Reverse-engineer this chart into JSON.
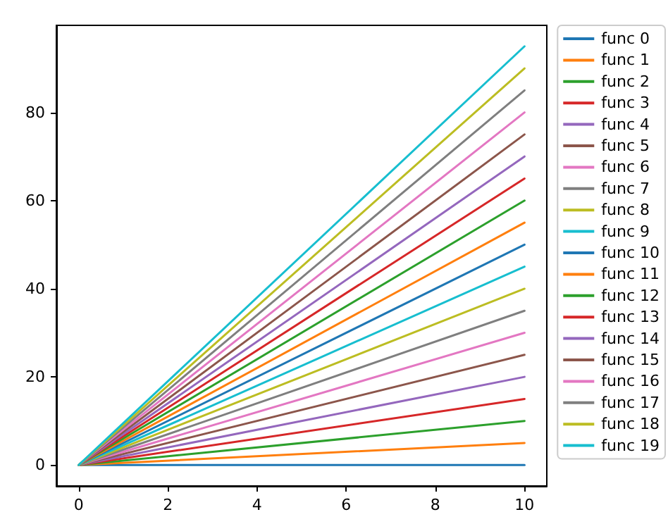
{
  "chart_data": {
    "type": "line",
    "x": [
      0,
      10
    ],
    "xlim": [
      -0.5,
      10.5
    ],
    "ylim": [
      -4.75,
      99.75
    ],
    "xticks": [
      0,
      2,
      4,
      6,
      8,
      10
    ],
    "yticks": [
      0,
      20,
      40,
      60,
      80
    ],
    "grid": false,
    "legend": "right",
    "line_style": "solid",
    "series": [
      {
        "name": "func 0",
        "color": "#1f77b4",
        "values": [
          0,
          0
        ]
      },
      {
        "name": "func 1",
        "color": "#ff7f0e",
        "values": [
          0,
          5
        ]
      },
      {
        "name": "func 2",
        "color": "#2ca02c",
        "values": [
          0,
          10
        ]
      },
      {
        "name": "func 3",
        "color": "#d62728",
        "values": [
          0,
          15
        ]
      },
      {
        "name": "func 4",
        "color": "#9467bd",
        "values": [
          0,
          20
        ]
      },
      {
        "name": "func 5",
        "color": "#8c564b",
        "values": [
          0,
          25
        ]
      },
      {
        "name": "func 6",
        "color": "#e377c2",
        "values": [
          0,
          30
        ]
      },
      {
        "name": "func 7",
        "color": "#7f7f7f",
        "values": [
          0,
          35
        ]
      },
      {
        "name": "func 8",
        "color": "#bcbd22",
        "values": [
          0,
          40
        ]
      },
      {
        "name": "func 9",
        "color": "#17becf",
        "values": [
          0,
          45
        ]
      },
      {
        "name": "func 10",
        "color": "#1f77b4",
        "values": [
          0,
          50
        ]
      },
      {
        "name": "func 11",
        "color": "#ff7f0e",
        "values": [
          0,
          55
        ]
      },
      {
        "name": "func 12",
        "color": "#2ca02c",
        "values": [
          0,
          60
        ]
      },
      {
        "name": "func 13",
        "color": "#d62728",
        "values": [
          0,
          65
        ]
      },
      {
        "name": "func 14",
        "color": "#9467bd",
        "values": [
          0,
          70
        ]
      },
      {
        "name": "func 15",
        "color": "#8c564b",
        "values": [
          0,
          75
        ]
      },
      {
        "name": "func 16",
        "color": "#e377c2",
        "values": [
          0,
          80
        ]
      },
      {
        "name": "func 17",
        "color": "#7f7f7f",
        "values": [
          0,
          85
        ]
      },
      {
        "name": "func 18",
        "color": "#bcbd22",
        "values": [
          0,
          90
        ]
      },
      {
        "name": "func 19",
        "color": "#17becf",
        "values": [
          0,
          95
        ]
      }
    ]
  }
}
